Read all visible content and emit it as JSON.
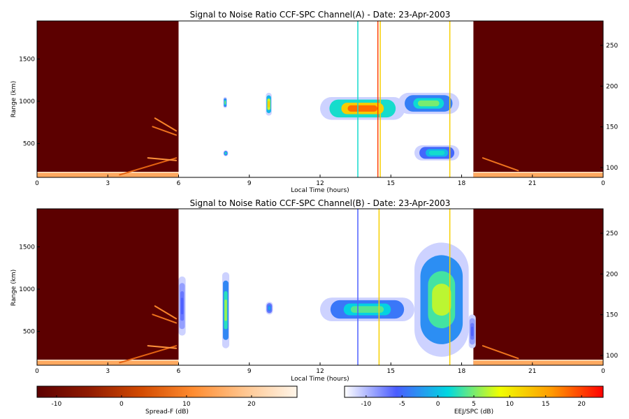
{
  "chart_data": [
    {
      "type": "heatmap",
      "title": "Signal to Noise Ratio CCF-SPC Channel(A) - Date: 23-Apr-2003",
      "xlabel": "Local Time (hours)",
      "ylabel": "Range (km)",
      "x_ticks": [
        "0",
        "3",
        "6",
        "9",
        "12",
        "15",
        "18",
        "21",
        "0"
      ],
      "y_ticks": [
        500,
        1000,
        1500
      ],
      "ylim": [
        100,
        1950
      ],
      "y2_ticks": [
        100,
        150,
        200,
        250
      ],
      "y2lim": [
        88,
        280
      ],
      "night_spread_f": {
        "colorscale": "spread-f",
        "intervals": [
          [
            0,
            6
          ],
          [
            18.5,
            24
          ]
        ],
        "ground_band_km": [
          100,
          160
        ],
        "echo_traces": [
          {
            "t_start": 4.9,
            "t_end": 5.9,
            "range_km": [
              700,
              600
            ],
            "db": 8
          },
          {
            "t_start": 5.0,
            "t_end": 5.9,
            "range_km": [
              800,
              650
            ],
            "db": 10
          },
          {
            "t_start": 3.5,
            "t_end": 5.9,
            "range_km": [
              130,
              330
            ],
            "db": 6
          },
          {
            "t_start": 4.7,
            "t_end": 5.9,
            "range_km": [
              330,
              300
            ],
            "db": 12
          },
          {
            "t_start": 18.9,
            "t_end": 20.4,
            "range_km": [
              330,
              180
            ],
            "db": 8
          }
        ]
      },
      "day_eej": {
        "colorscale": "eej-spc",
        "patches": [
          {
            "t": [
              7.9,
              8.05
            ],
            "range_km": [
              920,
              1050
            ],
            "peak_db": 5
          },
          {
            "t": [
              7.9,
              8.1
            ],
            "range_km": [
              350,
              420
            ],
            "peak_db": 3
          },
          {
            "t": [
              9.7,
              9.95
            ],
            "range_km": [
              830,
              1100
            ],
            "peak_db": 12
          },
          {
            "t": [
              12.0,
              15.6
            ],
            "range_km": [
              780,
              1050
            ],
            "peak_db": 18
          },
          {
            "t": [
              15.3,
              17.9
            ],
            "range_km": [
              850,
              1100
            ],
            "peak_db": 5
          },
          {
            "t": [
              16.0,
              17.9
            ],
            "range_km": [
              300,
              480
            ],
            "peak_db": 2
          }
        ],
        "marker_lines": [
          {
            "t": 13.6,
            "db": 2
          },
          {
            "t": 14.45,
            "db": 20
          },
          {
            "t": 14.55,
            "db": 12
          },
          {
            "t": 17.5,
            "db": 12
          }
        ]
      }
    },
    {
      "type": "heatmap",
      "title": "Signal to Noise Ratio CCF-SPC Channel(B) - Date: 23-Apr-2003",
      "xlabel": "Local Time (hours)",
      "ylabel": "Range (km)",
      "x_ticks": [
        "0",
        "3",
        "6",
        "9",
        "12",
        "15",
        "18",
        "21",
        "0"
      ],
      "y_ticks": [
        500,
        1000,
        1500
      ],
      "ylim": [
        100,
        1950
      ],
      "y2_ticks": [
        100,
        150,
        200,
        250
      ],
      "y2lim": [
        88,
        280
      ],
      "night_spread_f": {
        "colorscale": "spread-f",
        "intervals": [
          [
            0,
            6
          ],
          [
            18.5,
            24
          ]
        ],
        "ground_band_km": [
          100,
          160
        ],
        "echo_traces": [
          {
            "t_start": 4.9,
            "t_end": 5.9,
            "range_km": [
              700,
              600
            ],
            "db": 8
          },
          {
            "t_start": 5.0,
            "t_end": 5.9,
            "range_km": [
              800,
              650
            ],
            "db": 10
          },
          {
            "t_start": 3.5,
            "t_end": 5.9,
            "range_km": [
              130,
              330
            ],
            "db": 6
          },
          {
            "t_start": 4.7,
            "t_end": 5.9,
            "range_km": [
              330,
              300
            ],
            "db": 12
          },
          {
            "t_start": 18.9,
            "t_end": 20.4,
            "range_km": [
              330,
              180
            ],
            "db": 8
          }
        ]
      },
      "day_eej": {
        "colorscale": "eej-spc",
        "patches": [
          {
            "t": [
              6.0,
              6.3
            ],
            "range_km": [
              450,
              1150
            ],
            "peak_db": -6
          },
          {
            "t": [
              7.85,
              8.15
            ],
            "range_km": [
              300,
              1200
            ],
            "peak_db": 6
          },
          {
            "t": [
              9.7,
              10.0
            ],
            "range_km": [
              700,
              850
            ],
            "peak_db": -2
          },
          {
            "t": [
              12.0,
              16.0
            ],
            "range_km": [
              620,
              900
            ],
            "peak_db": 4
          },
          {
            "t": [
              16.0,
              18.3
            ],
            "range_km": [
              200,
              1550
            ],
            "peak_db": 7
          },
          {
            "t": [
              18.3,
              18.6
            ],
            "range_km": [
              300,
              700
            ],
            "peak_db": -6
          }
        ],
        "marker_lines": [
          {
            "t": 13.6,
            "db": -6
          },
          {
            "t": 14.5,
            "db": 12
          },
          {
            "t": 17.5,
            "db": 12
          }
        ]
      }
    }
  ],
  "colorbars": [
    {
      "label": "Spread-F (dB)",
      "ticks": [
        "-10",
        "0",
        "10",
        "20"
      ],
      "range": [
        -13,
        27
      ],
      "colors": [
        "#5c0000",
        "#8f1a00",
        "#d24a00",
        "#ff8c30",
        "#ffc690",
        "#fff6ea"
      ]
    },
    {
      "label": "EEJ/SPC (dB)",
      "ticks": [
        "-10",
        "-5",
        "0",
        "5",
        "10",
        "15",
        "20"
      ],
      "range": [
        -13,
        23
      ],
      "colors": [
        "#ffffff",
        "#4a5cff",
        "#00d8e0",
        "#f0ff00",
        "#ff9a00",
        "#ff0000"
      ]
    }
  ]
}
